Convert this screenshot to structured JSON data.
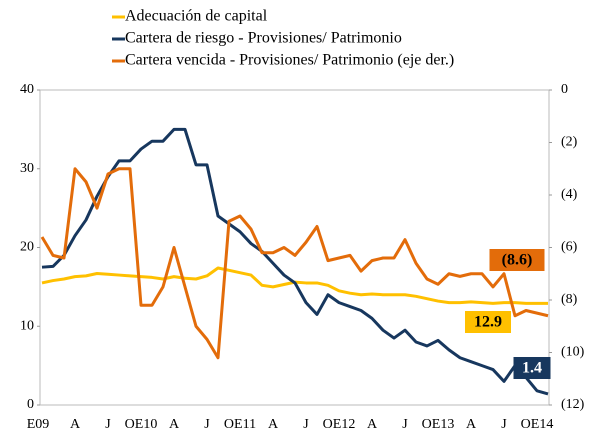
{
  "chart_data": {
    "type": "line",
    "categories": [
      "E09",
      null,
      null,
      "A",
      null,
      null,
      "J",
      null,
      null,
      "OE10",
      null,
      null,
      "A",
      null,
      null,
      "J",
      null,
      null,
      "OE11",
      null,
      null,
      "A",
      null,
      null,
      "J",
      null,
      null,
      "OE12",
      null,
      null,
      "A",
      null,
      null,
      "J",
      null,
      null,
      "OE13",
      null,
      null,
      "A",
      null,
      null,
      "J",
      null,
      null,
      "OE14",
      null
    ],
    "series": [
      {
        "name": "Adecuación de capital",
        "color": "#ffc000",
        "values": [
          15.5,
          15.8,
          16.0,
          16.3,
          16.4,
          16.7,
          16.6,
          16.5,
          16.4,
          16.3,
          16.2,
          16.0,
          16.3,
          16.1,
          16.0,
          16.4,
          17.4,
          17.1,
          16.8,
          16.5,
          15.2,
          15.0,
          15.3,
          15.6,
          15.5,
          15.5,
          15.2,
          14.5,
          14.2,
          14.0,
          14.1,
          14.0,
          14.0,
          14.0,
          13.8,
          13.5,
          13.2,
          13.0,
          13.0,
          13.1,
          13.0,
          12.9,
          13.0,
          13.0,
          12.9,
          12.9,
          12.9
        ],
        "value_labels": [
          null,
          null,
          null,
          null,
          null,
          null,
          null,
          null,
          null,
          null,
          null,
          null,
          null,
          null,
          null,
          null,
          null,
          null,
          null,
          null,
          null,
          null,
          null,
          null,
          null,
          null,
          null,
          null,
          null,
          null,
          null,
          null,
          null,
          null,
          null,
          null,
          null,
          null,
          null,
          null,
          null,
          null,
          null,
          null,
          null,
          null,
          "12.9"
        ]
      },
      {
        "name": "Cartera de riesgo - Provisiones/ Patrimonio",
        "color": "#17375e",
        "values": [
          17.5,
          17.6,
          19.0,
          21.5,
          23.5,
          26.5,
          29.0,
          31.0,
          31.0,
          32.5,
          33.5,
          33.5,
          35.0,
          35.0,
          30.5,
          30.5,
          24.0,
          23.0,
          22.0,
          20.5,
          19.5,
          18.0,
          16.5,
          15.5,
          13.0,
          11.5,
          14.0,
          13.0,
          12.5,
          12.0,
          11.0,
          9.5,
          8.5,
          9.5,
          8.0,
          7.5,
          8.2,
          7.0,
          6.0,
          5.5,
          5.0,
          4.5,
          3.0,
          5.0,
          3.5,
          1.8,
          1.4
        ],
        "value_labels": [
          null,
          null,
          null,
          null,
          null,
          null,
          null,
          null,
          null,
          null,
          null,
          null,
          null,
          null,
          null,
          null,
          null,
          null,
          null,
          null,
          null,
          null,
          null,
          null,
          null,
          null,
          null,
          null,
          null,
          null,
          null,
          null,
          null,
          null,
          null,
          null,
          null,
          null,
          null,
          null,
          null,
          null,
          null,
          null,
          null,
          null,
          "1.4"
        ]
      },
      {
        "name": "Cartera vencida - Provisiones/ Patrimonio (eje der.)",
        "color": "#e36c0a",
        "axis": "y2",
        "values": [
          -5.6,
          -6.3,
          -6.4,
          -3.0,
          -3.5,
          -4.5,
          -3.2,
          -3.0,
          -3.0,
          -8.2,
          -8.2,
          -7.5,
          -6.0,
          -7.5,
          -9.0,
          -9.5,
          -10.2,
          -5.0,
          -4.8,
          -5.3,
          -6.2,
          -6.2,
          -6.0,
          -6.3,
          -5.8,
          -5.2,
          -6.5,
          -6.4,
          -6.3,
          -6.9,
          -6.5,
          -6.4,
          -6.4,
          -5.7,
          -6.6,
          -7.2,
          -7.4,
          -7.0,
          -7.1,
          -7.0,
          -7.0,
          -7.5,
          -7.0,
          -8.6,
          -8.4,
          -8.5,
          -8.6
        ],
        "value_labels": [
          null,
          null,
          null,
          null,
          null,
          null,
          null,
          null,
          null,
          null,
          null,
          null,
          null,
          null,
          null,
          null,
          null,
          null,
          null,
          null,
          null,
          null,
          null,
          null,
          null,
          null,
          null,
          null,
          null,
          null,
          null,
          null,
          null,
          null,
          null,
          null,
          null,
          null,
          null,
          null,
          null,
          null,
          null,
          null,
          null,
          null,
          "(8.6)"
        ]
      }
    ],
    "ylim": [
      0,
      40
    ],
    "yticks": [
      0,
      10,
      20,
      30,
      40
    ],
    "y2lim": [
      0,
      -12
    ],
    "y2ticks": [
      0,
      {
        "value": -2,
        "label": "(2)"
      },
      {
        "value": -4,
        "label": "(4)"
      },
      {
        "value": -6,
        "label": "(6)"
      },
      {
        "value": -8,
        "label": "(8)"
      },
      {
        "value": -10,
        "label": "(10)"
      },
      {
        "value": -12,
        "label": "(12)"
      }
    ]
  }
}
